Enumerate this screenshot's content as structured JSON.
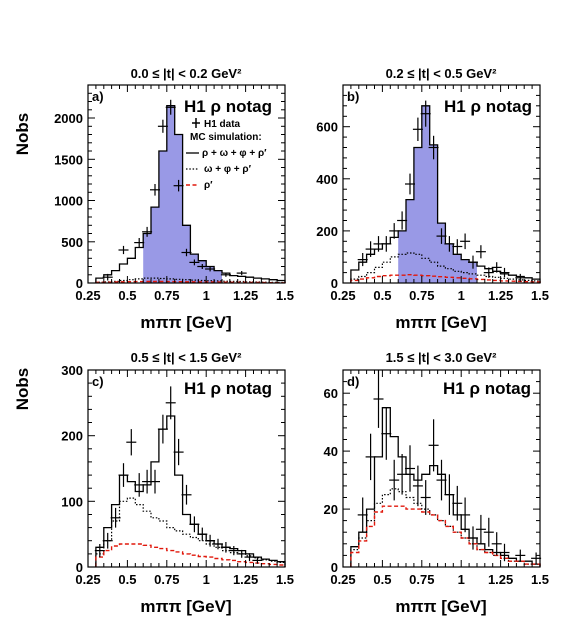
{
  "chart_data": [
    {
      "type": "histogram",
      "panel_label": "a)",
      "title": "0.0 ≤ |t| < 0.2 GeV²",
      "tag": "H1 ρ notag",
      "xlabel": "mππ [GeV]",
      "ylabel": "Nobs",
      "xlim": [
        0.25,
        1.5
      ],
      "ylim": [
        0,
        2400
      ],
      "xticks": [
        0.25,
        0.5,
        0.75,
        1,
        1.25,
        1.5
      ],
      "xtick_labels": [
        "0.25",
        "0.5",
        "0.75",
        "1",
        "1.25",
        "1.5"
      ],
      "yticks": [
        0,
        500,
        1000,
        1500,
        2000
      ],
      "ytick_labels": [
        "0",
        "500",
        "1000",
        "1500",
        "2000"
      ],
      "legend": {
        "placement": "top-right",
        "entries": [
          "H1 data",
          "MC simulation:",
          "ρ + ω + φ + ρ′",
          "ω + φ + ρ′",
          "ρ′"
        ]
      },
      "fill_range": [
        0.6,
        1.1
      ],
      "bin_edges": [
        0.3,
        0.35,
        0.4,
        0.45,
        0.5,
        0.55,
        0.6,
        0.65,
        0.7,
        0.75,
        0.8,
        0.85,
        0.9,
        0.95,
        1.0,
        1.05,
        1.1,
        1.15,
        1.2,
        1.25,
        1.3,
        1.35,
        1.4,
        1.45,
        1.5
      ],
      "series": [
        {
          "name": "ρ + ω + φ + ρ′",
          "style": "solid",
          "values": [
            60,
            100,
            150,
            230,
            300,
            430,
            600,
            920,
            1600,
            2150,
            1800,
            700,
            350,
            270,
            200,
            150,
            120,
            90,
            80,
            70,
            60,
            50,
            40,
            30
          ]
        },
        {
          "name": "ω + φ + ρ′",
          "style": "dotted",
          "values": [
            10,
            15,
            20,
            30,
            40,
            50,
            60,
            60,
            55,
            50,
            45,
            40,
            35,
            30,
            28,
            25,
            22,
            20,
            18,
            15,
            12,
            10,
            8,
            6
          ]
        },
        {
          "name": "ρ′",
          "style": "dashed-red",
          "values": [
            8,
            10,
            12,
            15,
            16,
            17,
            18,
            18,
            18,
            17,
            16,
            15,
            14,
            13,
            12,
            11,
            10,
            9,
            8,
            7,
            6,
            5,
            4,
            3
          ]
        }
      ],
      "data_points": {
        "name": "H1 data",
        "x": [
          0.375,
          0.475,
          0.575,
          0.625,
          0.675,
          0.725,
          0.775,
          0.825,
          0.875,
          0.925,
          0.975,
          1.025,
          1.125,
          1.225
        ],
        "y": [
          70,
          400,
          490,
          620,
          1130,
          1900,
          2130,
          1180,
          370,
          250,
          200,
          170,
          100,
          120
        ],
        "yerr": [
          40,
          50,
          55,
          60,
          70,
          80,
          90,
          70,
          45,
          35,
          30,
          30,
          25,
          25
        ]
      }
    },
    {
      "type": "histogram",
      "panel_label": "b)",
      "title": "0.2 ≤ |t| < 0.5 GeV²",
      "tag": "H1 ρ notag",
      "xlabel": "mππ [GeV]",
      "ylabel": "",
      "xlim": [
        0.25,
        1.5
      ],
      "ylim": [
        0,
        760
      ],
      "xticks": [
        0.25,
        0.5,
        0.75,
        1,
        1.25,
        1.5
      ],
      "xtick_labels": [
        "0.25",
        "0.5",
        "0.75",
        "1",
        "1.25",
        "1.5"
      ],
      "yticks": [
        0,
        200,
        400,
        600
      ],
      "ytick_labels": [
        "0",
        "200",
        "400",
        "600"
      ],
      "fill_range": [
        0.6,
        1.1
      ],
      "bin_edges": [
        0.3,
        0.35,
        0.4,
        0.45,
        0.5,
        0.55,
        0.6,
        0.65,
        0.7,
        0.75,
        0.8,
        0.85,
        0.9,
        0.95,
        1.0,
        1.05,
        1.1,
        1.15,
        1.2,
        1.25,
        1.3,
        1.35,
        1.4,
        1.45,
        1.5
      ],
      "series": [
        {
          "name": "ρ + ω + φ + ρ′",
          "style": "solid",
          "values": [
            50,
            80,
            110,
            130,
            150,
            175,
            200,
            320,
            520,
            680,
            530,
            230,
            150,
            110,
            90,
            80,
            65,
            55,
            45,
            35,
            30,
            25,
            20,
            15
          ]
        },
        {
          "name": "ω + φ + ρ′",
          "style": "dotted",
          "values": [
            15,
            25,
            40,
            60,
            80,
            100,
            110,
            115,
            110,
            95,
            80,
            65,
            55,
            45,
            40,
            35,
            30,
            25,
            22,
            18,
            15,
            12,
            10,
            8
          ]
        },
        {
          "name": "ρ′",
          "style": "dashed-red",
          "values": [
            10,
            15,
            20,
            25,
            28,
            30,
            30,
            32,
            30,
            28,
            26,
            24,
            22,
            20,
            18,
            16,
            14,
            12,
            10,
            8,
            7,
            6,
            5,
            4
          ]
        }
      ],
      "data_points": {
        "name": "H1 data",
        "x": [
          0.375,
          0.425,
          0.475,
          0.525,
          0.575,
          0.625,
          0.675,
          0.725,
          0.775,
          0.825,
          0.875,
          0.925,
          0.975,
          1.025,
          1.075,
          1.125,
          1.175,
          1.225,
          1.275,
          1.375
        ],
        "y": [
          90,
          130,
          150,
          150,
          200,
          240,
          380,
          590,
          650,
          520,
          180,
          150,
          140,
          160,
          80,
          120,
          40,
          60,
          40,
          20
        ],
        "yerr": [
          25,
          30,
          30,
          30,
          30,
          35,
          40,
          45,
          50,
          45,
          30,
          30,
          28,
          30,
          25,
          25,
          20,
          20,
          18,
          15
        ]
      }
    },
    {
      "type": "histogram",
      "panel_label": "c)",
      "title": "0.5 ≤ |t| < 1.5 GeV²",
      "tag": "H1 ρ notag",
      "xlabel": "mππ [GeV]",
      "ylabel": "Nobs",
      "xlim": [
        0.25,
        1.5
      ],
      "ylim": [
        0,
        300
      ],
      "xticks": [
        0.25,
        0.5,
        0.75,
        1,
        1.25,
        1.5
      ],
      "xtick_labels": [
        "0.25",
        "0.5",
        "0.75",
        "1",
        "1.25",
        "1.5"
      ],
      "yticks": [
        0,
        100,
        200,
        300
      ],
      "ytick_labels": [
        "0",
        "100",
        "200",
        "300"
      ],
      "fill_range": null,
      "bin_edges": [
        0.3,
        0.35,
        0.4,
        0.45,
        0.5,
        0.55,
        0.6,
        0.65,
        0.7,
        0.75,
        0.8,
        0.85,
        0.9,
        0.95,
        1.0,
        1.05,
        1.1,
        1.15,
        1.2,
        1.25,
        1.3,
        1.35,
        1.4,
        1.45,
        1.5
      ],
      "series": [
        {
          "name": "ρ + ω + φ + ρ′",
          "style": "solid",
          "values": [
            30,
            60,
            95,
            140,
            130,
            115,
            125,
            160,
            210,
            230,
            140,
            80,
            65,
            50,
            40,
            35,
            30,
            28,
            25,
            20,
            15,
            12,
            10,
            8
          ]
        },
        {
          "name": "ω + φ + ρ′",
          "style": "dotted",
          "values": [
            20,
            40,
            70,
            100,
            105,
            95,
            85,
            75,
            70,
            60,
            55,
            50,
            45,
            40,
            35,
            30,
            25,
            22,
            20,
            17,
            14,
            11,
            9,
            7
          ]
        },
        {
          "name": "ρ′",
          "style": "dashed-red",
          "values": [
            15,
            25,
            32,
            35,
            35,
            35,
            33,
            30,
            28,
            25,
            23,
            20,
            18,
            16,
            15,
            13,
            11,
            10,
            8,
            7,
            6,
            5,
            4,
            3
          ]
        }
      ],
      "data_points": {
        "name": "H1 data",
        "x": [
          0.325,
          0.375,
          0.425,
          0.475,
          0.525,
          0.575,
          0.625,
          0.675,
          0.725,
          0.775,
          0.825,
          0.875,
          0.925,
          0.975,
          1.025,
          1.075,
          1.125,
          1.175,
          1.225,
          1.275,
          1.325
        ],
        "y": [
          25,
          40,
          75,
          140,
          190,
          125,
          130,
          130,
          210,
          250,
          175,
          110,
          65,
          50,
          40,
          35,
          30,
          25,
          20,
          15,
          10
        ],
        "yerr": [
          10,
          12,
          15,
          18,
          20,
          18,
          18,
          18,
          22,
          25,
          20,
          15,
          12,
          10,
          9,
          8,
          8,
          7,
          6,
          6,
          5
        ]
      }
    },
    {
      "type": "histogram",
      "panel_label": "d)",
      "title": "1.5 ≤ |t| < 3.0 GeV²",
      "tag": "H1 ρ notag",
      "xlabel": "mππ [GeV]",
      "ylabel": "",
      "xlim": [
        0.25,
        1.5
      ],
      "ylim": [
        0,
        68
      ],
      "xticks": [
        0.25,
        0.5,
        0.75,
        1,
        1.25,
        1.5
      ],
      "xtick_labels": [
        "0.25",
        "0.5",
        "0.75",
        "1",
        "1.25",
        "1.5"
      ],
      "yticks": [
        0,
        20,
        40,
        60
      ],
      "ytick_labels": [
        "0",
        "20",
        "40",
        "60"
      ],
      "fill_range": null,
      "bin_edges": [
        0.3,
        0.35,
        0.4,
        0.45,
        0.5,
        0.55,
        0.6,
        0.65,
        0.7,
        0.75,
        0.8,
        0.85,
        0.9,
        0.95,
        1.0,
        1.05,
        1.1,
        1.15,
        1.2,
        1.25,
        1.3,
        1.35,
        1.4,
        1.45,
        1.5
      ],
      "series": [
        {
          "name": "ρ + ω + φ + ρ′",
          "style": "solid",
          "values": [
            7,
            12,
            20,
            38,
            55,
            45,
            38,
            32,
            30,
            32,
            35,
            32,
            25,
            18,
            13,
            10,
            8,
            6,
            5,
            4,
            3,
            2,
            2,
            1
          ]
        },
        {
          "name": "ω + φ + ρ′",
          "style": "dotted",
          "values": [
            6,
            10,
            16,
            22,
            25,
            27,
            26,
            24,
            22,
            20,
            18,
            16,
            14,
            12,
            10,
            8,
            6,
            5,
            4,
            3,
            2,
            2,
            1,
            1
          ]
        },
        {
          "name": "ρ′",
          "style": "dashed-red",
          "values": [
            5,
            9,
            14,
            19,
            21,
            21,
            21,
            20,
            20,
            19,
            18,
            16,
            14,
            12,
            10,
            8,
            6,
            5,
            4,
            3,
            2,
            2,
            1,
            1
          ]
        }
      ],
      "data_points": {
        "name": "H1 data",
        "x": [
          0.375,
          0.425,
          0.475,
          0.525,
          0.575,
          0.625,
          0.675,
          0.725,
          0.775,
          0.825,
          0.875,
          0.925,
          0.975,
          1.025,
          1.075,
          1.125,
          1.175,
          1.225,
          1.275,
          1.375,
          1.475
        ],
        "y": [
          18,
          38,
          58,
          46,
          30,
          32,
          34,
          28,
          24,
          42,
          30,
          25,
          22,
          18,
          10,
          13,
          12,
          8,
          5,
          4,
          3
        ],
        "yerr": [
          6,
          8,
          10,
          9,
          7,
          7,
          8,
          7,
          6,
          9,
          7,
          7,
          6,
          6,
          4,
          5,
          5,
          4,
          3,
          2,
          2
        ]
      }
    }
  ]
}
